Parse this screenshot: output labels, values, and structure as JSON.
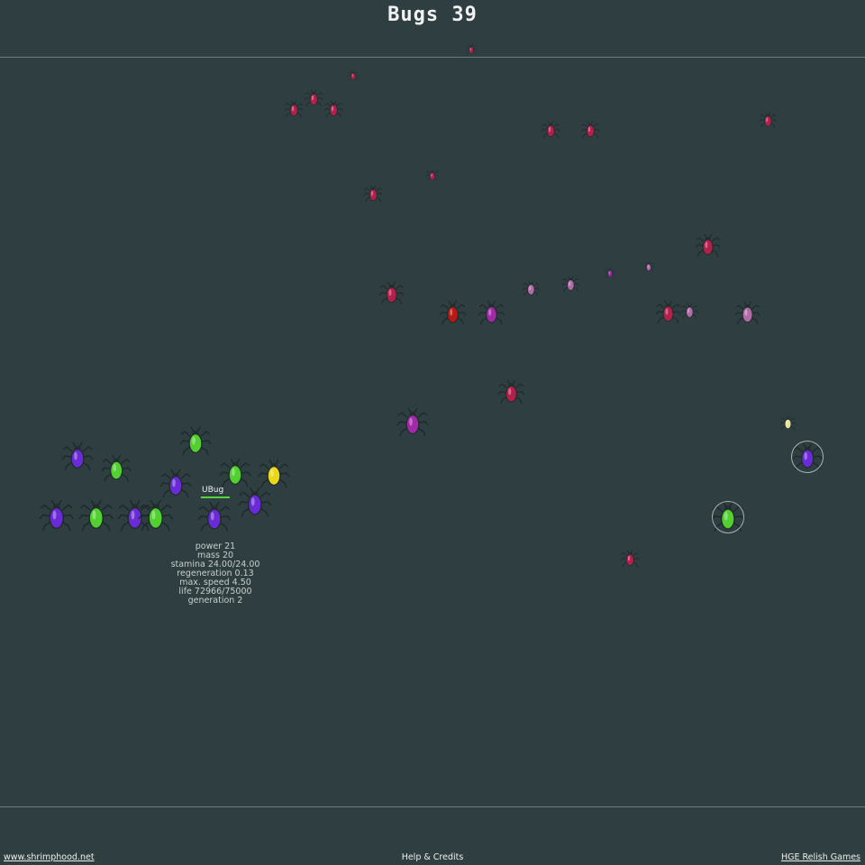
{
  "header": {
    "title": "Bugs 39"
  },
  "selected_bug": {
    "name": "UBug",
    "stats": [
      "power 21",
      "mass 20",
      "stamina 24.00/24.00",
      "regeneration 0.13",
      "max. speed 4.50",
      "life 72966/75000",
      "generation 2"
    ]
  },
  "footer": {
    "left_link": "www.shrimphood.net",
    "center": "Help & Credits",
    "right_link": "HGE Relish Games"
  },
  "colors": {
    "background": "#2f3e40",
    "player_purple": "#6a2ad8",
    "player_green": "#52d030",
    "player_yellow": "#e8d818",
    "enemy_crimson": "#b4204c",
    "enemy_magenta": "#a22aa8",
    "enemy_mauve": "#b36aa8",
    "enemy_red": "#b81818",
    "pale_bug": "#e8e0a0"
  }
}
